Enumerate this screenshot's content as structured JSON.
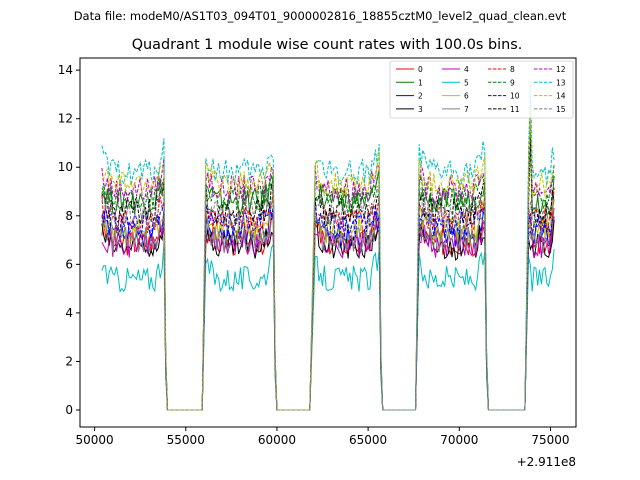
{
  "chart_data": {
    "type": "line",
    "suptitle": "Data file: modeM0/AS1T03_094T01_9000002816_18855cztM0_level2_quad_clean.evt",
    "title": "Quadrant 1 module wise count rates with 100.0s bins.",
    "xlabel": "",
    "ylabel": "",
    "x_offset_label": "+2.911e8",
    "xlim": [
      49200,
      76400
    ],
    "ylim": [
      -0.7,
      14.5
    ],
    "x_ticks": [
      50000,
      55000,
      60000,
      65000,
      70000,
      75000
    ],
    "x_tick_labels": [
      "50000",
      "55000",
      "60000",
      "65000",
      "70000",
      "75000"
    ],
    "y_ticks": [
      0,
      2,
      4,
      6,
      8,
      10,
      12,
      14
    ],
    "y_tick_labels": [
      "0",
      "2",
      "4",
      "6",
      "8",
      "10",
      "12",
      "14"
    ],
    "legend_position": "top-right",
    "legend_columns": 4,
    "orbit_segments": [
      {
        "start": 50400,
        "end": 53800,
        "gap_end": 56000
      },
      {
        "start": 56100,
        "end": 59800,
        "gap_end": 61900
      },
      {
        "start": 62100,
        "end": 65600,
        "gap_end": 67700
      },
      {
        "start": 67800,
        "end": 71400,
        "gap_end": 73700
      },
      {
        "start": 73800,
        "end": 75200,
        "gap_end": null
      }
    ],
    "bin_seconds": 100,
    "series": [
      {
        "name": "0",
        "color": "#ff0000",
        "dash": "solid",
        "mean": 6.9
      },
      {
        "name": "1",
        "color": "#008000",
        "dash": "solid",
        "mean": 8.6
      },
      {
        "name": "2",
        "color": "#0000ff",
        "dash": "solid",
        "mean": 7.2
      },
      {
        "name": "3",
        "color": "#000000",
        "dash": "solid",
        "mean": 6.7
      },
      {
        "name": "4",
        "color": "#bf00bf",
        "dash": "solid",
        "mean": 6.8
      },
      {
        "name": "5",
        "color": "#00bfbf",
        "dash": "solid",
        "mean": 5.4
      },
      {
        "name": "6",
        "color": "#bfbf00",
        "dash": "solid",
        "mean": 7.4
      },
      {
        "name": "7",
        "color": "#808080",
        "dash": "solid",
        "mean": 7.0
      },
      {
        "name": "8",
        "color": "#ff0000",
        "dash": "dashed",
        "mean": 7.8
      },
      {
        "name": "9",
        "color": "#008000",
        "dash": "dashed",
        "mean": 8.7
      },
      {
        "name": "10",
        "color": "#0000ff",
        "dash": "dashed",
        "mean": 7.6
      },
      {
        "name": "11",
        "color": "#000000",
        "dash": "dashed",
        "mean": 8.2
      },
      {
        "name": "12",
        "color": "#bf00bf",
        "dash": "dashed",
        "mean": 9.1
      },
      {
        "name": "13",
        "color": "#00bfbf",
        "dash": "dashed",
        "mean": 9.8
      },
      {
        "name": "14",
        "color": "#bfbf00",
        "dash": "dashed",
        "mean": 9.3
      },
      {
        "name": "15",
        "color": "#808080",
        "dash": "dashed",
        "mean": 8.1
      }
    ]
  }
}
